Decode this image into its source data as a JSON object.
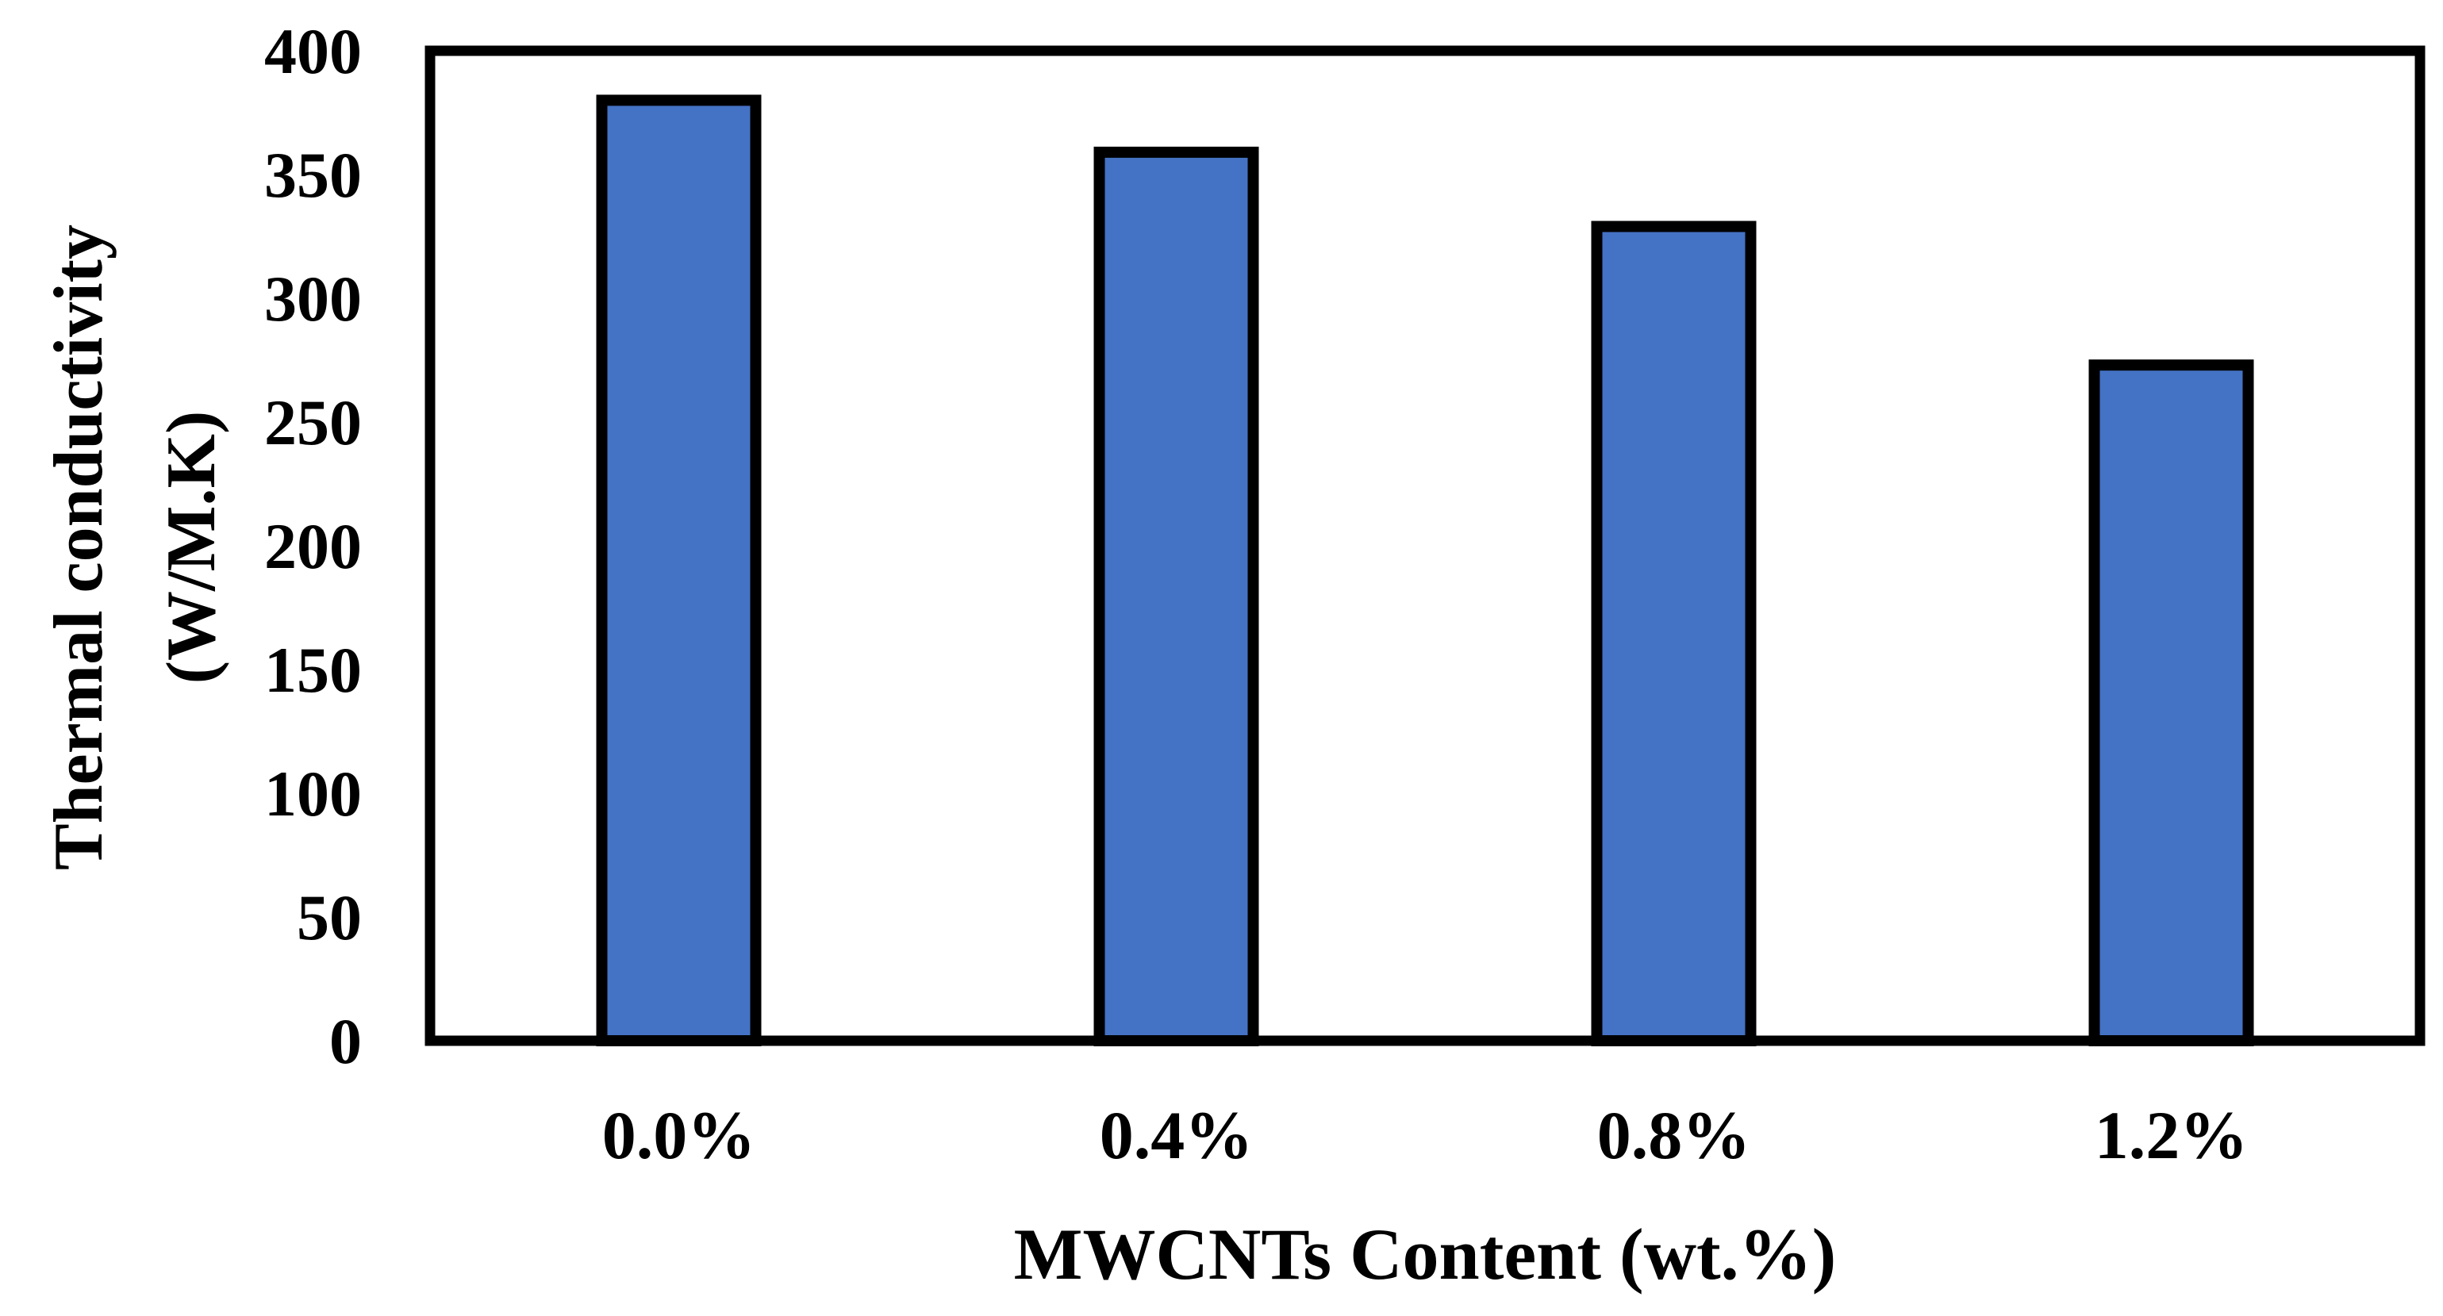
{
  "chart_data": {
    "type": "bar",
    "title": "",
    "xlabel": "MWCNTs Content (wt.%)",
    "ylabel_lines": [
      "Thermal conductivity",
      "(W/M.K)"
    ],
    "categories": [
      "0.0%",
      "0.4%",
      "0.8%",
      "1.2%"
    ],
    "values": [
      380,
      359,
      329,
      273
    ],
    "ylim": [
      0,
      400
    ],
    "yticks": [
      0,
      50,
      100,
      150,
      200,
      250,
      300,
      350,
      400
    ],
    "ytick_labels": [
      "0",
      "50",
      "100",
      "150",
      "200",
      "250",
      "300",
      "350",
      "400"
    ],
    "grid": false,
    "legend": "none",
    "bar_color": "#4472C4",
    "bar_edge_color": "#000000"
  }
}
